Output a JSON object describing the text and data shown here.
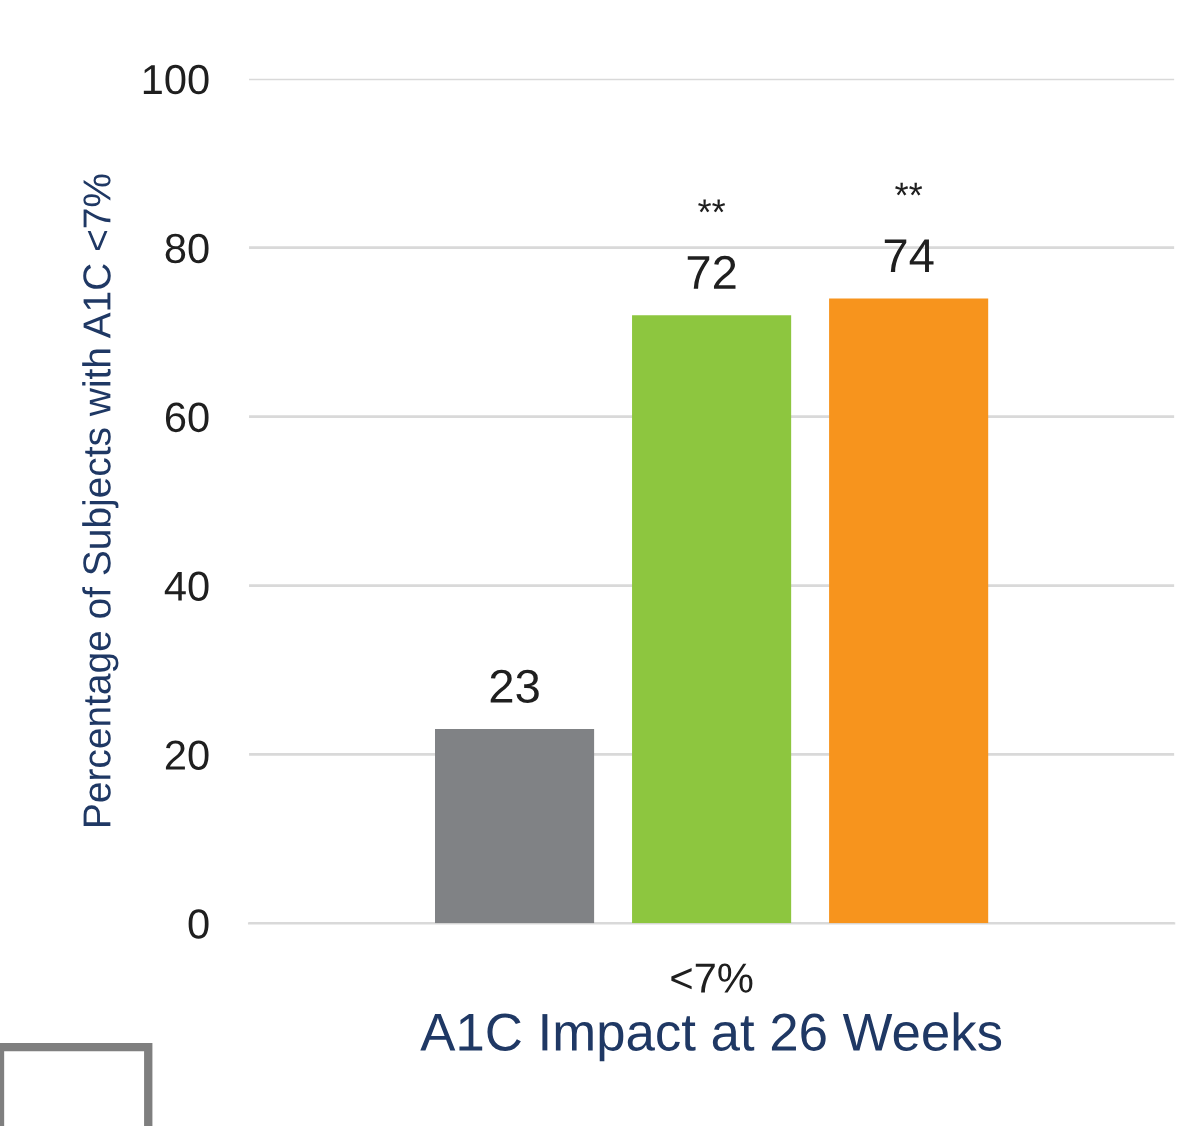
{
  "chart_data": {
    "type": "bar",
    "xlabel": "A1C Impact at 26 Weeks",
    "ylabel": "Percentage of Subjects with A1C <7%",
    "categories": [
      "<7%"
    ],
    "series": [
      {
        "color": "#808285",
        "values": [
          23
        ]
      },
      {
        "color": "#8dc63f",
        "values": [
          72
        ]
      },
      {
        "color": "#f7941d",
        "values": [
          74
        ]
      }
    ],
    "ylim": [
      0,
      100
    ],
    "yticks": [
      0,
      20,
      40,
      60,
      80,
      100
    ],
    "grid": "y",
    "data_labels": true,
    "legend": false,
    "annotations": [
      "**",
      "**"
    ]
  }
}
